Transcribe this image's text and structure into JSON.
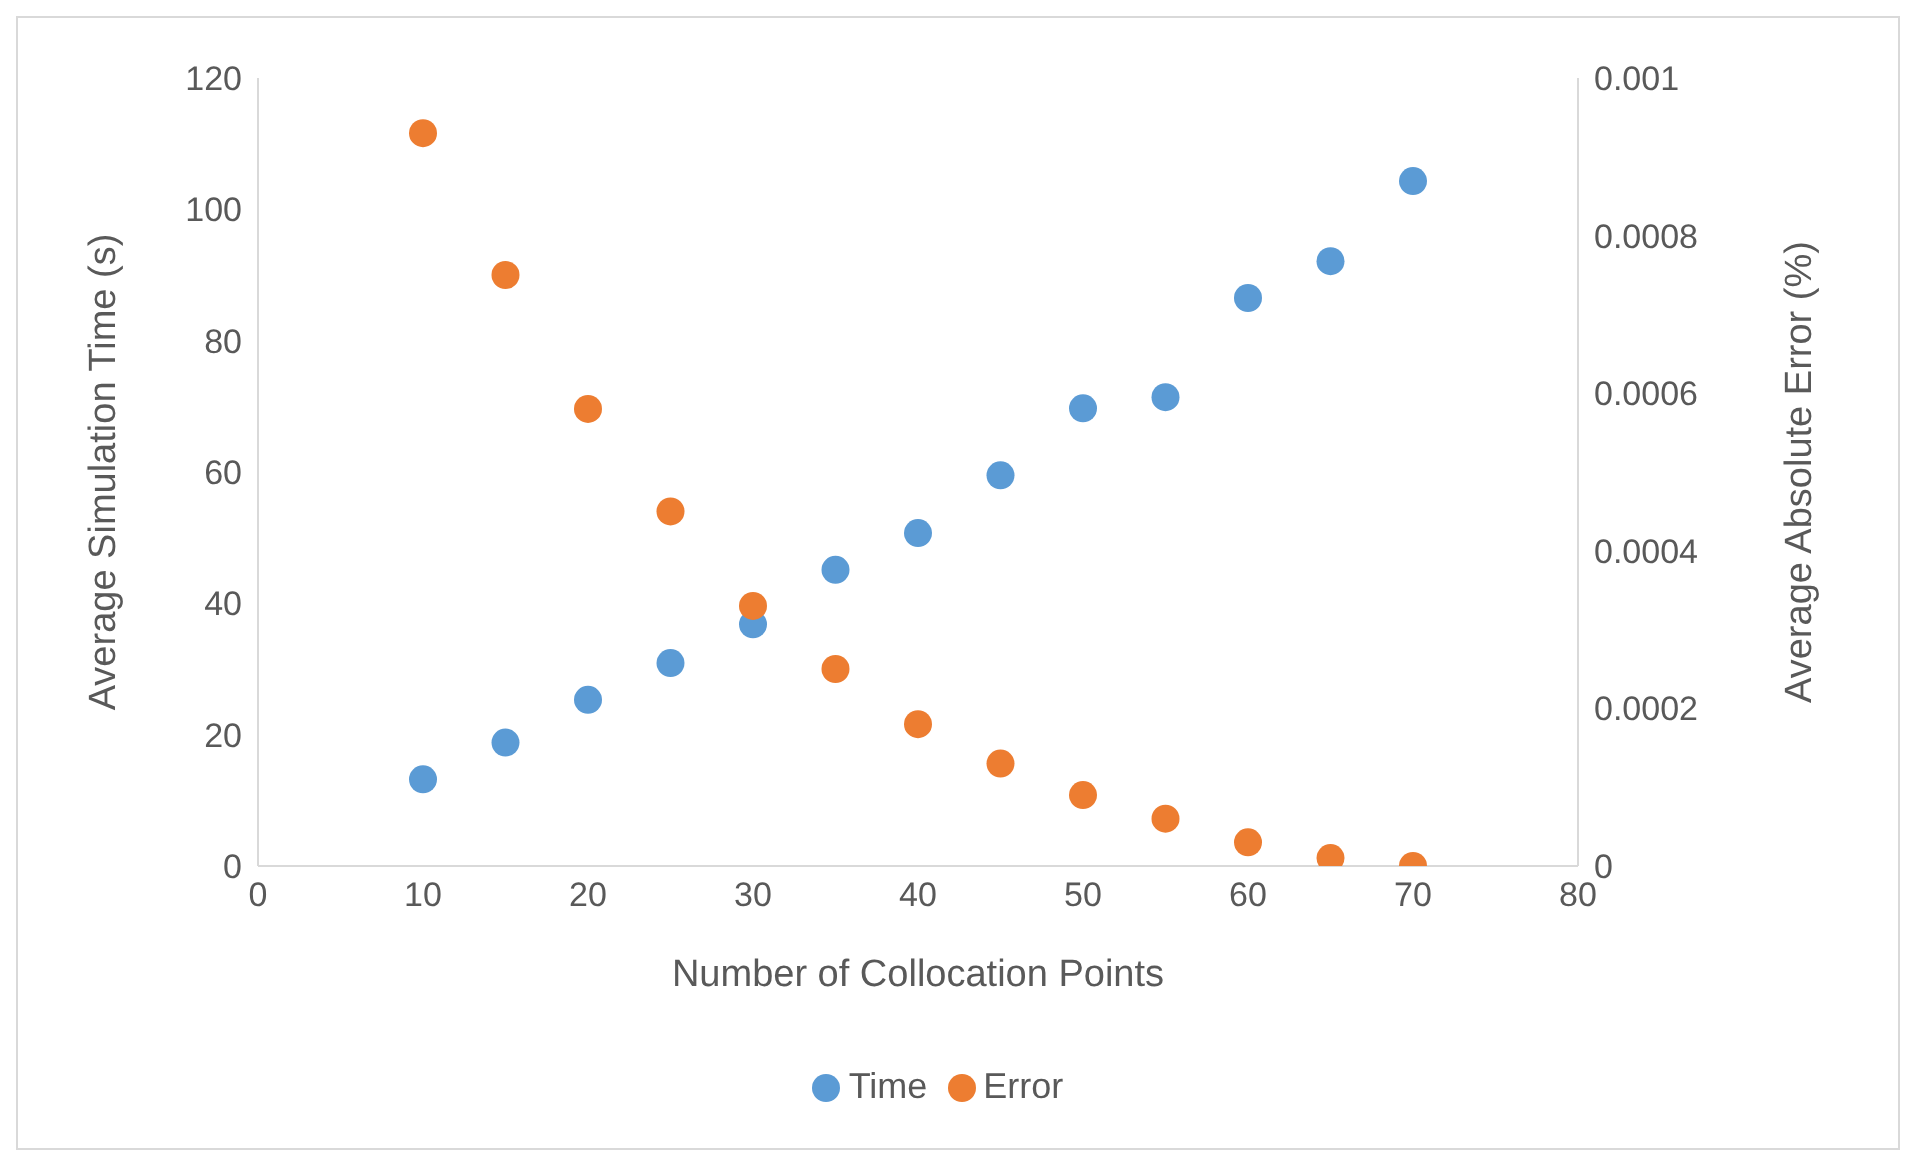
{
  "chart_data": {
    "type": "scatter",
    "xlabel": "Number of Collocation Points",
    "ylabel": "Average Simulation Time (s)",
    "y2label": "Average Absolute Error (%)",
    "x": [
      10,
      15,
      20,
      25,
      30,
      35,
      40,
      45,
      50,
      55,
      60,
      65,
      70
    ],
    "series": [
      {
        "name": "Time",
        "color": "#5b9bd5",
        "values": [
          13.2,
          18.8,
          25.3,
          30.9,
          36.8,
          45.1,
          50.7,
          59.5,
          69.7,
          71.4,
          86.5,
          92.1,
          104.3
        ]
      },
      {
        "name": "Error",
        "color": "#ed7d31",
        "axis": "y2",
        "values": [
          0.00093,
          0.00075,
          0.00058,
          0.00045,
          0.00033,
          0.00025,
          0.00018,
          0.00013,
          9e-05,
          6e-05,
          3e-05,
          1e-05,
          0
        ]
      }
    ],
    "xlim": [
      0,
      80
    ],
    "xticks": [
      0,
      10,
      20,
      30,
      40,
      50,
      60,
      70,
      80
    ],
    "ylim": [
      0,
      120
    ],
    "yticks": [
      0,
      20,
      40,
      60,
      80,
      100,
      120
    ],
    "y2lim": [
      0,
      0.001
    ],
    "y2ticks": [
      0,
      0.0002,
      0.0004,
      0.0006,
      0.0008,
      0.001
    ],
    "grid": false,
    "legend": "bottom",
    "marker": "circle"
  }
}
